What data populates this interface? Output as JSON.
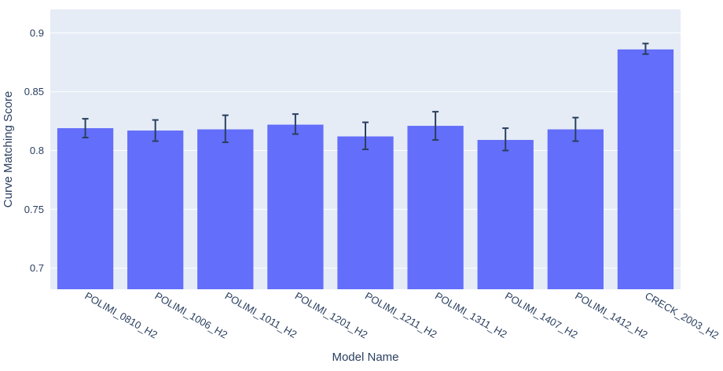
{
  "chart_data": {
    "type": "bar",
    "title": "",
    "xlabel": "Model Name",
    "ylabel": "Curve Matching Score",
    "categories": [
      "POLIMI_0810_H2",
      "POLIMI_1006_H2",
      "POLIMI_1011_H2",
      "POLIMI_1201_H2",
      "POLIMI_1211_H2",
      "POLIMI_1311_H2",
      "POLIMI_1407_H2",
      "POLIMI_1412_H2",
      "CRECK_2003_H2"
    ],
    "values": [
      0.819,
      0.817,
      0.818,
      0.822,
      0.812,
      0.821,
      0.809,
      0.818,
      0.886
    ],
    "error_plus": [
      0.008,
      0.009,
      0.012,
      0.009,
      0.012,
      0.012,
      0.01,
      0.01,
      0.005
    ],
    "error_minus": [
      0.008,
      0.009,
      0.011,
      0.008,
      0.011,
      0.012,
      0.009,
      0.01,
      0.004
    ],
    "ylim": [
      0.682,
      0.92
    ],
    "yticks": [
      0.7,
      0.75,
      0.8,
      0.85,
      0.9
    ],
    "ytick_labels": [
      "0.7",
      "0.75",
      "0.8",
      "0.85",
      "0.9"
    ],
    "grid": true,
    "legend": "none",
    "colors": {
      "bar": "#636efa",
      "plot_bg": "#e5ecf6",
      "grid": "#ffffff",
      "error_bar": "#2a3f5f",
      "text": "#2a3f5f"
    }
  }
}
